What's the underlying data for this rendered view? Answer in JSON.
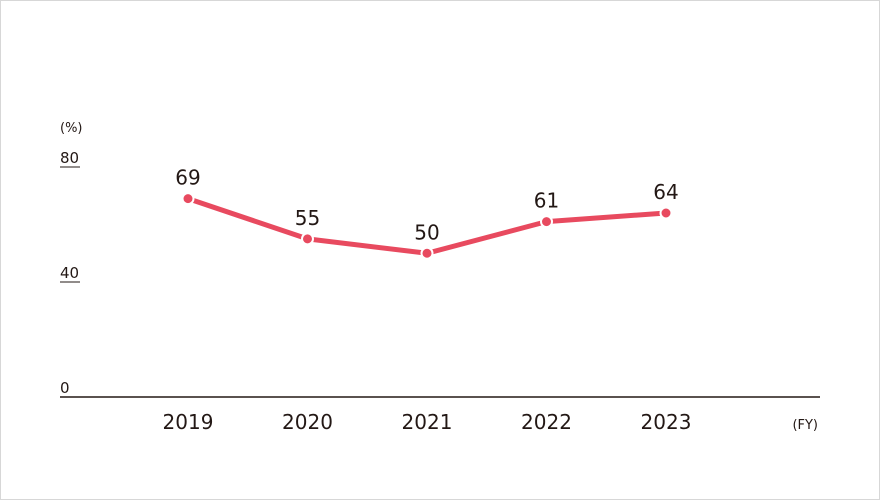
{
  "chart_data": {
    "type": "line",
    "categories": [
      "2019",
      "2020",
      "2021",
      "2022",
      "2023"
    ],
    "series": [
      {
        "values": [
          69,
          55,
          50,
          61,
          64
        ],
        "color": "#e84a5f"
      }
    ],
    "data_labels": [
      "69",
      "55",
      "50",
      "61",
      "64"
    ],
    "y_unit_label": "(%)",
    "x_unit_label": "(FY)",
    "y_ticks": [
      {
        "value": 0,
        "label": "0"
      },
      {
        "value": 40,
        "label": "40"
      },
      {
        "value": 80,
        "label": "80"
      }
    ],
    "ylim": [
      0,
      80
    ],
    "grid": false,
    "colors": {
      "line": "#e84a5f",
      "text": "#231815",
      "axis": "#231815"
    }
  }
}
